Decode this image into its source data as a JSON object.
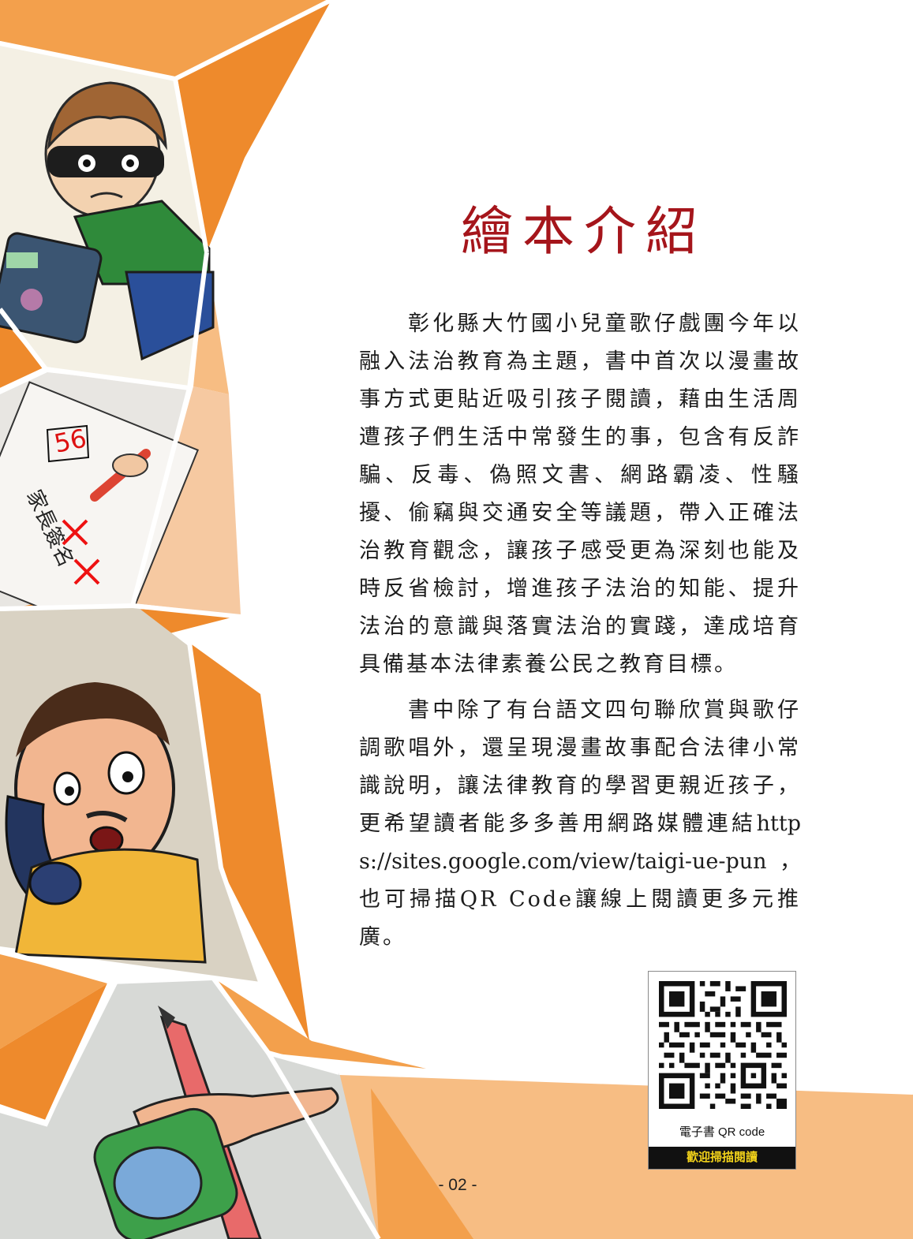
{
  "page": {
    "title": "繪本介紹",
    "paragraphs": [
      "彰化縣大竹國小兒童歌仔戲團今年以融入法治教育為主題，書中首次以漫畫故事方式更貼近吸引孩子閱讀，藉由生活周遭孩子們生活中常發生的事，包含有反詐騙、反毒、偽照文書、網路霸凌、性騷擾、偷竊與交通安全等議題，帶入正確法治教育觀念，讓孩子感受更為深刻也能及時反省檢討，增進孩子法治的知能、提升法治的意識與落實法治的實踐，達成培育具備基本法律素養公民之教育目標。"
    ],
    "paragraph2": {
      "before": "書中除了有台語文四句聯欣賞與歌仔調歌唱外，還呈現漫畫故事配合法律小常識說明，讓法律教育的學習更親近孩子，更希望讀者能多多善用網路媒體連結",
      "url": "https://sites.google.com/view/taigi-ue-pun，",
      "after": "也可掃描QR Code讓線上閱讀更多元推廣。"
    },
    "page_number": "- 02 -"
  },
  "qr": {
    "label": "電子書  QR code",
    "banner": "歡迎掃描閱讀"
  },
  "illustrations": [
    {
      "name": "masked-child-stealing",
      "description_icon": "thief-icon"
    },
    {
      "name": "test-paper-signature",
      "score": "56"
    },
    {
      "name": "surprised-man-on-phone",
      "description_icon": "phone-icon"
    },
    {
      "name": "hand-with-pen",
      "description_icon": "pen-icon"
    }
  ],
  "colors": {
    "title": "#a5151b",
    "orange_dark": "#ee8a2c",
    "orange_mid": "#f3a04c",
    "orange_light": "#f7bd83",
    "peach": "#f6c9a1",
    "text": "#1c1c1c"
  }
}
